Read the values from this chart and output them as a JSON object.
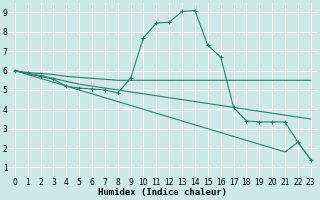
{
  "xlabel": "Humidex (Indice chaleur)",
  "background_color": "#cce8e8",
  "grid_color": "#ffffff",
  "line_color": "#2d7d6e",
  "xlim": [
    -0.5,
    23.5
  ],
  "ylim": [
    0.5,
    9.5
  ],
  "xticks": [
    0,
    1,
    2,
    3,
    4,
    5,
    6,
    7,
    8,
    9,
    10,
    11,
    12,
    13,
    14,
    15,
    16,
    17,
    18,
    19,
    20,
    21,
    22,
    23
  ],
  "yticks": [
    1,
    2,
    3,
    4,
    5,
    6,
    7,
    8,
    9
  ],
  "line1": {
    "x": [
      0,
      1,
      2,
      3,
      4,
      5,
      6,
      7,
      8,
      9,
      10,
      11,
      12,
      13,
      14,
      15,
      16,
      17,
      18,
      19,
      20,
      21,
      22,
      23
    ],
    "y": [
      6.0,
      5.9,
      5.85,
      5.8,
      5.7,
      5.65,
      5.6,
      5.55,
      5.5,
      5.5,
      5.5,
      5.5,
      5.5,
      5.5,
      5.5,
      5.5,
      5.5,
      5.5,
      5.5,
      5.5,
      5.5,
      5.5,
      5.5,
      5.5
    ]
  },
  "line2": {
    "x": [
      0,
      1,
      2,
      3,
      4,
      5,
      6,
      7,
      8,
      9,
      10,
      11,
      12,
      13,
      14,
      15,
      16,
      17,
      18,
      19,
      20,
      21,
      22,
      23
    ],
    "y": [
      6.0,
      5.85,
      5.75,
      5.6,
      5.45,
      5.3,
      5.2,
      5.1,
      5.0,
      4.9,
      4.8,
      4.7,
      4.6,
      4.5,
      4.4,
      4.3,
      4.2,
      4.1,
      4.0,
      3.9,
      3.8,
      3.7,
      3.6,
      3.5
    ]
  },
  "line3": {
    "x": [
      0,
      1,
      2,
      3,
      4,
      5,
      6,
      7,
      8,
      9,
      10,
      11,
      12,
      13,
      14,
      15,
      16,
      17,
      18,
      19,
      20,
      21,
      22,
      23
    ],
    "y": [
      6.0,
      5.8,
      5.6,
      5.4,
      5.2,
      5.0,
      4.8,
      4.6,
      4.4,
      4.2,
      4.0,
      3.8,
      3.6,
      3.4,
      3.2,
      3.0,
      2.8,
      2.6,
      2.4,
      2.2,
      2.0,
      1.8,
      2.3,
      1.4
    ]
  },
  "line4": {
    "x": [
      0,
      1,
      2,
      3,
      4,
      5,
      6,
      7,
      8,
      9,
      10,
      11,
      12,
      13,
      14,
      15,
      16,
      17,
      18,
      19,
      20,
      21,
      22,
      23
    ],
    "y": [
      6.0,
      5.85,
      5.7,
      5.55,
      5.2,
      5.1,
      5.05,
      5.0,
      4.85,
      5.6,
      7.7,
      8.45,
      8.5,
      9.05,
      9.1,
      7.3,
      6.7,
      4.1,
      3.4,
      3.35,
      3.35,
      3.35,
      2.3,
      1.4
    ]
  }
}
